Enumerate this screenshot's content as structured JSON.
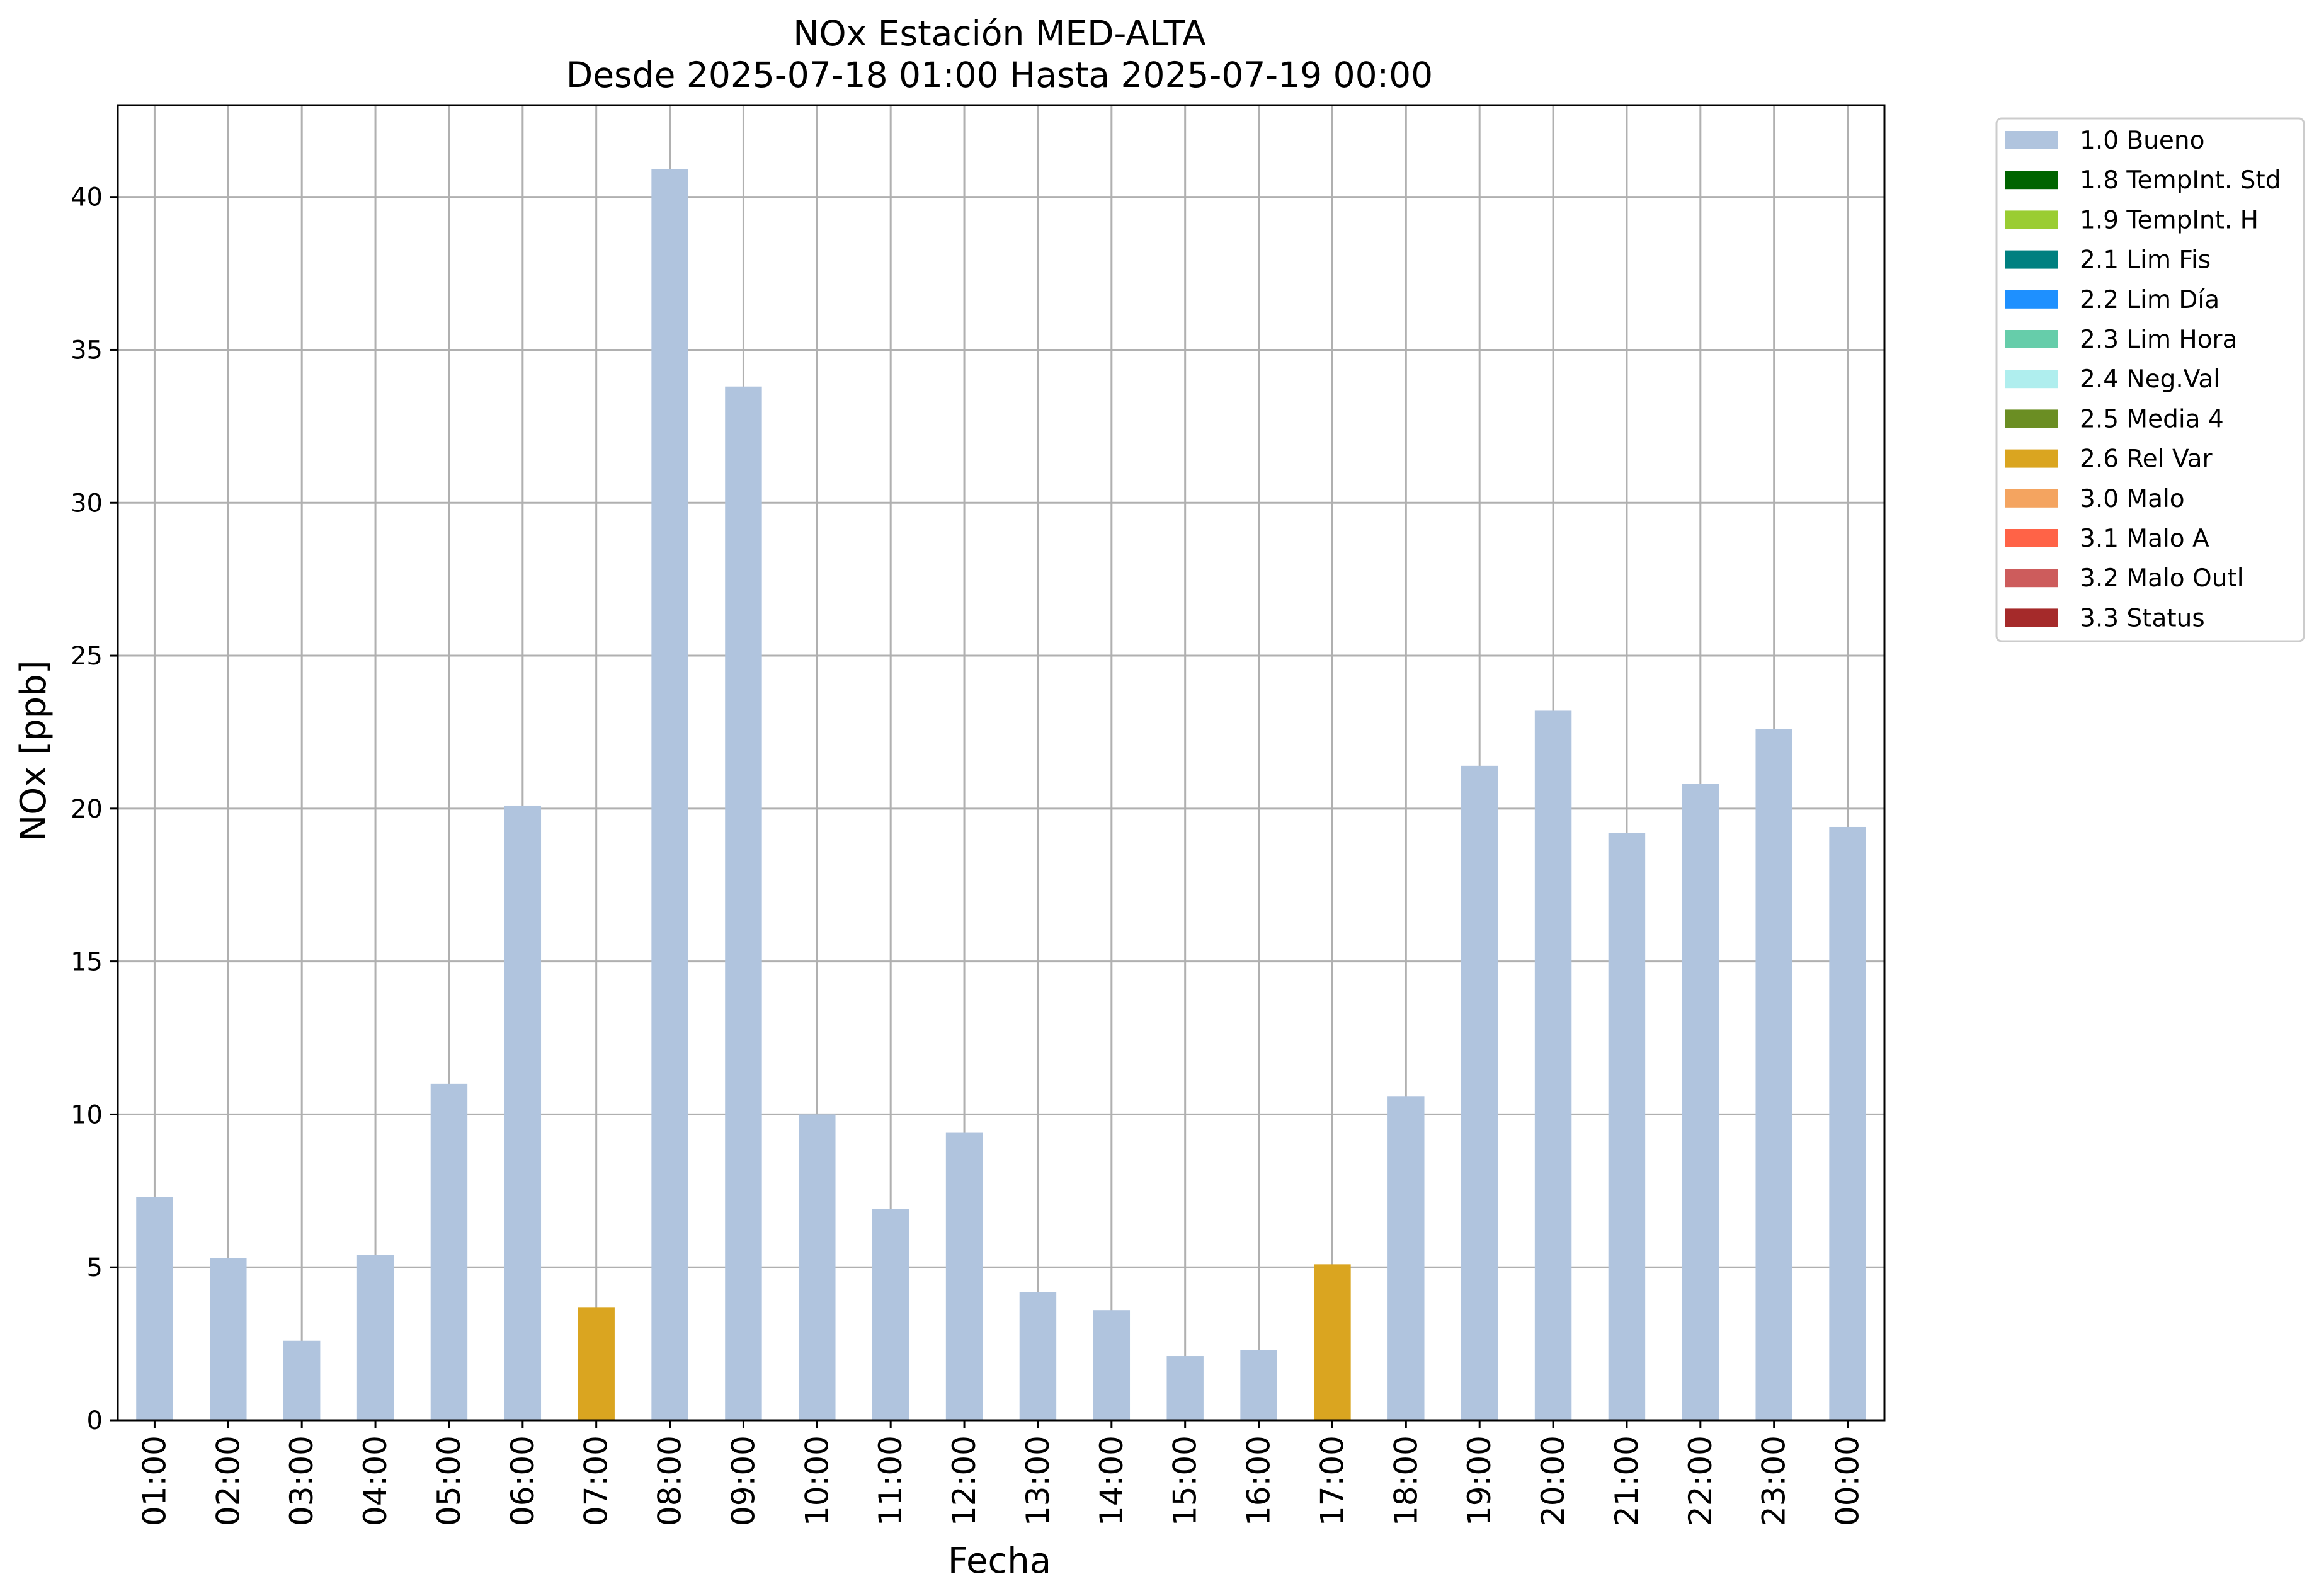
{
  "chart_data": {
    "type": "bar",
    "title": "NOx Estación MED-ALTA",
    "subtitle": "Desde 2025-07-18 01:00 Hasta 2025-07-19 00:00",
    "xlabel": "Fecha",
    "ylabel": "NOx [ppb]",
    "ylim": [
      0,
      43
    ],
    "yticks": [
      0,
      5,
      10,
      15,
      20,
      25,
      30,
      35,
      40
    ],
    "grid": true,
    "legend_position": "outside-top-right",
    "categories": [
      "01:00",
      "02:00",
      "03:00",
      "04:00",
      "05:00",
      "06:00",
      "07:00",
      "08:00",
      "09:00",
      "10:00",
      "11:00",
      "12:00",
      "13:00",
      "14:00",
      "15:00",
      "16:00",
      "17:00",
      "18:00",
      "19:00",
      "20:00",
      "21:00",
      "22:00",
      "23:00",
      "00:00"
    ],
    "values": [
      7.3,
      5.3,
      2.6,
      5.4,
      11.0,
      20.1,
      3.7,
      40.9,
      33.8,
      10.0,
      6.9,
      9.4,
      4.2,
      3.6,
      2.1,
      2.3,
      5.1,
      10.6,
      21.4,
      23.2,
      19.2,
      20.8,
      22.6,
      19.4
    ],
    "flags": [
      "1.0 Bueno",
      "1.0 Bueno",
      "1.0 Bueno",
      "1.0 Bueno",
      "1.0 Bueno",
      "1.0 Bueno",
      "2.6 Rel Var",
      "1.0 Bueno",
      "1.0 Bueno",
      "1.0 Bueno",
      "1.0 Bueno",
      "1.0 Bueno",
      "1.0 Bueno",
      "1.0 Bueno",
      "1.0 Bueno",
      "1.0 Bueno",
      "2.6 Rel Var",
      "1.0 Bueno",
      "1.0 Bueno",
      "1.0 Bueno",
      "1.0 Bueno",
      "1.0 Bueno",
      "1.0 Bueno",
      "1.0 Bueno"
    ],
    "legend": [
      {
        "label": "1.0 Bueno",
        "color": "#b0c4de"
      },
      {
        "label": "1.8 TempInt. Std",
        "color": "#006400"
      },
      {
        "label": "1.9 TempInt. H",
        "color": "#9acd32"
      },
      {
        "label": "2.1 Lim Fis",
        "color": "#008080"
      },
      {
        "label": "2.2 Lim Día",
        "color": "#1e90ff"
      },
      {
        "label": "2.3 Lim Hora",
        "color": "#66cdaa"
      },
      {
        "label": "2.4 Neg.Val",
        "color": "#afeeee"
      },
      {
        "label": "2.5 Media 4",
        "color": "#6b8e23"
      },
      {
        "label": "2.6 Rel Var",
        "color": "#daa520"
      },
      {
        "label": "3.0 Malo",
        "color": "#f4a460"
      },
      {
        "label": "3.1 Malo A",
        "color": "#ff6347"
      },
      {
        "label": "3.2 Malo Outl",
        "color": "#cd5c5c"
      },
      {
        "label": "3.3 Status",
        "color": "#a52a2a"
      }
    ],
    "colors": {
      "grid": "#b0b0b0",
      "axes": "#000000"
    }
  }
}
